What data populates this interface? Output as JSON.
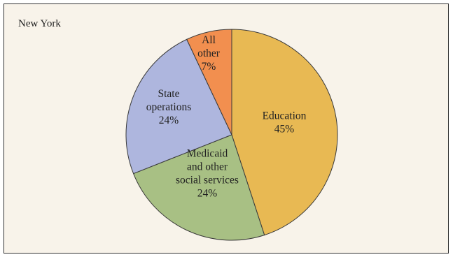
{
  "chart_data": {
    "type": "pie",
    "title": "New York",
    "slices": [
      {
        "label_lines": [
          "Education",
          "45%"
        ],
        "value": 45,
        "color": "#e8b953"
      },
      {
        "label_lines": [
          "Medicaid",
          "and other",
          "social services",
          "24%"
        ],
        "value": 24,
        "color": "#a8c084"
      },
      {
        "label_lines": [
          "State",
          "operations",
          "24%"
        ],
        "value": 24,
        "color": "#aeb6de"
      },
      {
        "label_lines": [
          "All",
          "other",
          "7%"
        ],
        "value": 7,
        "color": "#f28f4f"
      }
    ]
  }
}
